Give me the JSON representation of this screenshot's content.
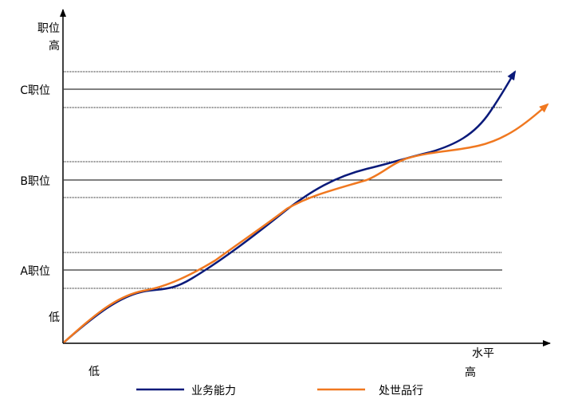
{
  "diagram": {
    "y_axis": {
      "title_line1": "职位",
      "title_line2": "高",
      "low_label": "低",
      "levels": [
        "C职位",
        "B职位",
        "A职位"
      ]
    },
    "x_axis": {
      "title": "水平",
      "high_label": "高",
      "low_label": "低"
    },
    "legend": [
      {
        "label": "业务能力",
        "color": "#0a1a7a"
      },
      {
        "label": "处世品行",
        "color": "#f07820"
      }
    ],
    "colors": {
      "axis": "#000000",
      "band_line": "#000000",
      "curve_skill": "#0a1a7a",
      "curve_conduct": "#f07820"
    }
  }
}
